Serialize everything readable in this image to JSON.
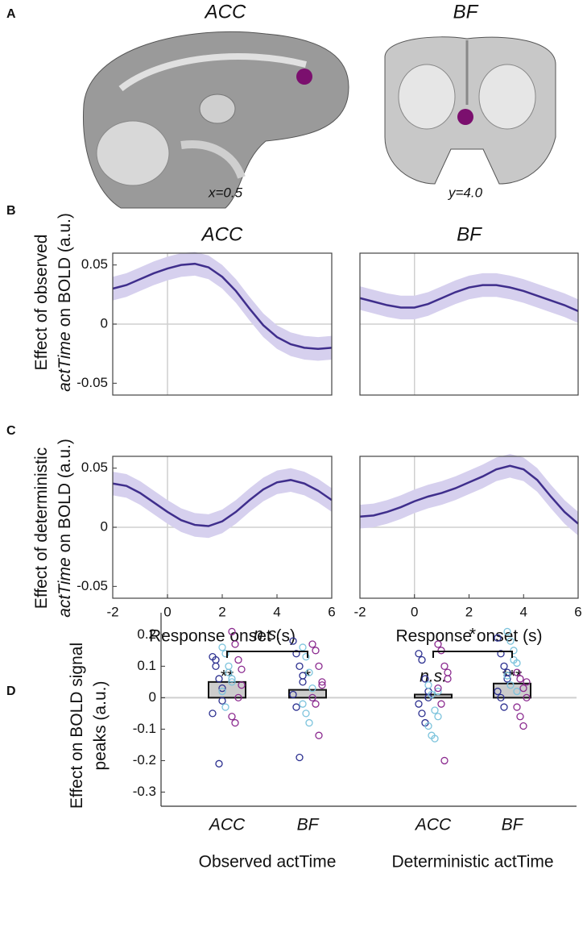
{
  "panel_labels": [
    "A",
    "B",
    "C",
    "D"
  ],
  "panel_a": {
    "titles": [
      "ACC",
      "BF"
    ],
    "coordinates": [
      "x=0.5",
      "y=4.0"
    ]
  },
  "chart_data": [
    {
      "type": "line",
      "title": "ACC",
      "ylabel": [
        "Effect of observed",
        "actTime",
        "on BOLD (a.u.)"
      ],
      "x": [
        -2,
        -1.5,
        -1,
        -0.5,
        0,
        0.5,
        1,
        1.5,
        2,
        2.5,
        3,
        3.5,
        4,
        4.5,
        5,
        5.5,
        6
      ],
      "series": [
        {
          "color": "#3f2e8c",
          "band_color": "#d6d0ee",
          "ci_halfwidth": 0.01,
          "values": [
            0.03,
            0.033,
            0.038,
            0.043,
            0.047,
            0.05,
            0.051,
            0.048,
            0.04,
            0.028,
            0.013,
            -0.001,
            -0.011,
            -0.017,
            -0.02,
            -0.021,
            -0.02
          ]
        }
      ],
      "xlim": [
        -2,
        6
      ],
      "ylim": [
        -0.06,
        0.06
      ],
      "yticks": [
        0.05,
        0,
        -0.05
      ]
    },
    {
      "type": "line",
      "title": "BF",
      "x": [
        -2,
        -1.5,
        -1,
        -0.5,
        0,
        0.5,
        1,
        1.5,
        2,
        2.5,
        3,
        3.5,
        4,
        4.5,
        5,
        5.5,
        6
      ],
      "series": [
        {
          "color": "#3f2e8c",
          "band_color": "#d6d0ee",
          "ci_halfwidth": 0.01,
          "values": [
            0.022,
            0.019,
            0.016,
            0.014,
            0.014,
            0.017,
            0.022,
            0.027,
            0.031,
            0.033,
            0.033,
            0.031,
            0.028,
            0.024,
            0.02,
            0.016,
            0.011
          ]
        }
      ],
      "xlim": [
        -2,
        6
      ],
      "ylim": [
        -0.06,
        0.06
      ]
    },
    {
      "type": "line",
      "ylabel": [
        "Effect of deterministic",
        "actTime",
        "on BOLD (a.u.)"
      ],
      "xlabel": "Response onset (s)",
      "x": [
        -2,
        -1.5,
        -1,
        -0.5,
        0,
        0.5,
        1,
        1.5,
        2,
        2.5,
        3,
        3.5,
        4,
        4.5,
        5,
        5.5,
        6
      ],
      "series": [
        {
          "color": "#3f2e8c",
          "band_color": "#d6d0ee",
          "ci_halfwidth": 0.01,
          "values": [
            0.037,
            0.035,
            0.029,
            0.021,
            0.013,
            0.006,
            0.002,
            0.001,
            0.005,
            0.013,
            0.023,
            0.032,
            0.038,
            0.04,
            0.037,
            0.031,
            0.023
          ]
        }
      ],
      "xlim": [
        -2,
        6
      ],
      "ylim": [
        -0.06,
        0.06
      ],
      "xticks": [
        -2,
        0,
        2,
        4,
        6
      ],
      "yticks": [
        0.05,
        0,
        -0.05
      ]
    },
    {
      "type": "line",
      "xlabel": "Response onset (s)",
      "x": [
        -2,
        -1.5,
        -1,
        -0.5,
        0,
        0.5,
        1,
        1.5,
        2,
        2.5,
        3,
        3.5,
        4,
        4.5,
        5,
        5.5,
        6
      ],
      "series": [
        {
          "color": "#3f2e8c",
          "band_color": "#d6d0ee",
          "ci_halfwidth": 0.01,
          "values": [
            0.009,
            0.01,
            0.013,
            0.017,
            0.022,
            0.026,
            0.029,
            0.033,
            0.038,
            0.043,
            0.049,
            0.052,
            0.049,
            0.04,
            0.026,
            0.013,
            0.003
          ]
        }
      ],
      "xlim": [
        -2,
        6
      ],
      "ylim": [
        -0.06,
        0.06
      ],
      "xticks": [
        -2,
        0,
        2,
        4,
        6
      ]
    },
    {
      "type": "bar",
      "ylabel": [
        "Effect on BOLD signal",
        "peaks (a.u.)"
      ],
      "categories": [
        "ACC",
        "BF",
        "ACC",
        "BF"
      ],
      "groups": [
        "Observed actTime",
        "Deterministic actTime"
      ],
      "values": [
        0.05,
        0.025,
        0.01,
        0.045
      ],
      "color": "#cccccc",
      "annotations": [
        "**",
        "*",
        "n.s.",
        "***"
      ],
      "brackets": [
        {
          "label": "n.s."
        },
        {
          "label": "*"
        }
      ],
      "dots": [
        {
          "color": "#2b2f8f",
          "values": [
            [
              0.13,
              0.1,
              0.06,
              0.03,
              -0.05,
              0.12,
              -0.21,
              -0.01
            ],
            [
              0.18,
              0.14,
              0.1,
              0.05,
              0.01,
              -0.03,
              -0.19,
              0.07
            ],
            [
              0.14,
              0.12,
              0.06,
              0.02,
              -0.02,
              -0.05,
              -0.08,
              0.0
            ],
            [
              0.19,
              0.14,
              0.1,
              0.06,
              0.02,
              0.0,
              -0.03,
              0.08
            ]
          ]
        },
        {
          "color": "#7cc3dc",
          "values": [
            [
              0.16,
              0.14,
              0.08,
              0.05,
              0.02,
              -0.03,
              0.1,
              0.06
            ],
            [
              0.16,
              0.13,
              0.08,
              0.03,
              -0.02,
              -0.05,
              -0.08,
              0.0
            ],
            [
              0.04,
              0.01,
              -0.04,
              -0.06,
              -0.09,
              -0.12,
              -0.13,
              0.02
            ],
            [
              0.21,
              0.18,
              0.15,
              0.11,
              0.07,
              0.04,
              0.12,
              0.02
            ]
          ]
        },
        {
          "color": "#8b2a8f",
          "values": [
            [
              0.21,
              0.17,
              0.12,
              0.04,
              -0.06,
              -0.08,
              0.0,
              0.09
            ],
            [
              0.17,
              0.15,
              0.1,
              0.05,
              0.0,
              -0.02,
              -0.12,
              0.04
            ],
            [
              0.17,
              0.15,
              0.1,
              0.06,
              0.03,
              -0.02,
              -0.2,
              0.08
            ],
            [
              0.08,
              0.06,
              0.03,
              0.0,
              -0.03,
              -0.06,
              -0.09,
              0.05
            ]
          ]
        }
      ],
      "ylim": [
        -0.345,
        0.27
      ],
      "yticks": [
        0.2,
        0.1,
        0,
        -0.1,
        -0.2,
        -0.3
      ]
    }
  ]
}
